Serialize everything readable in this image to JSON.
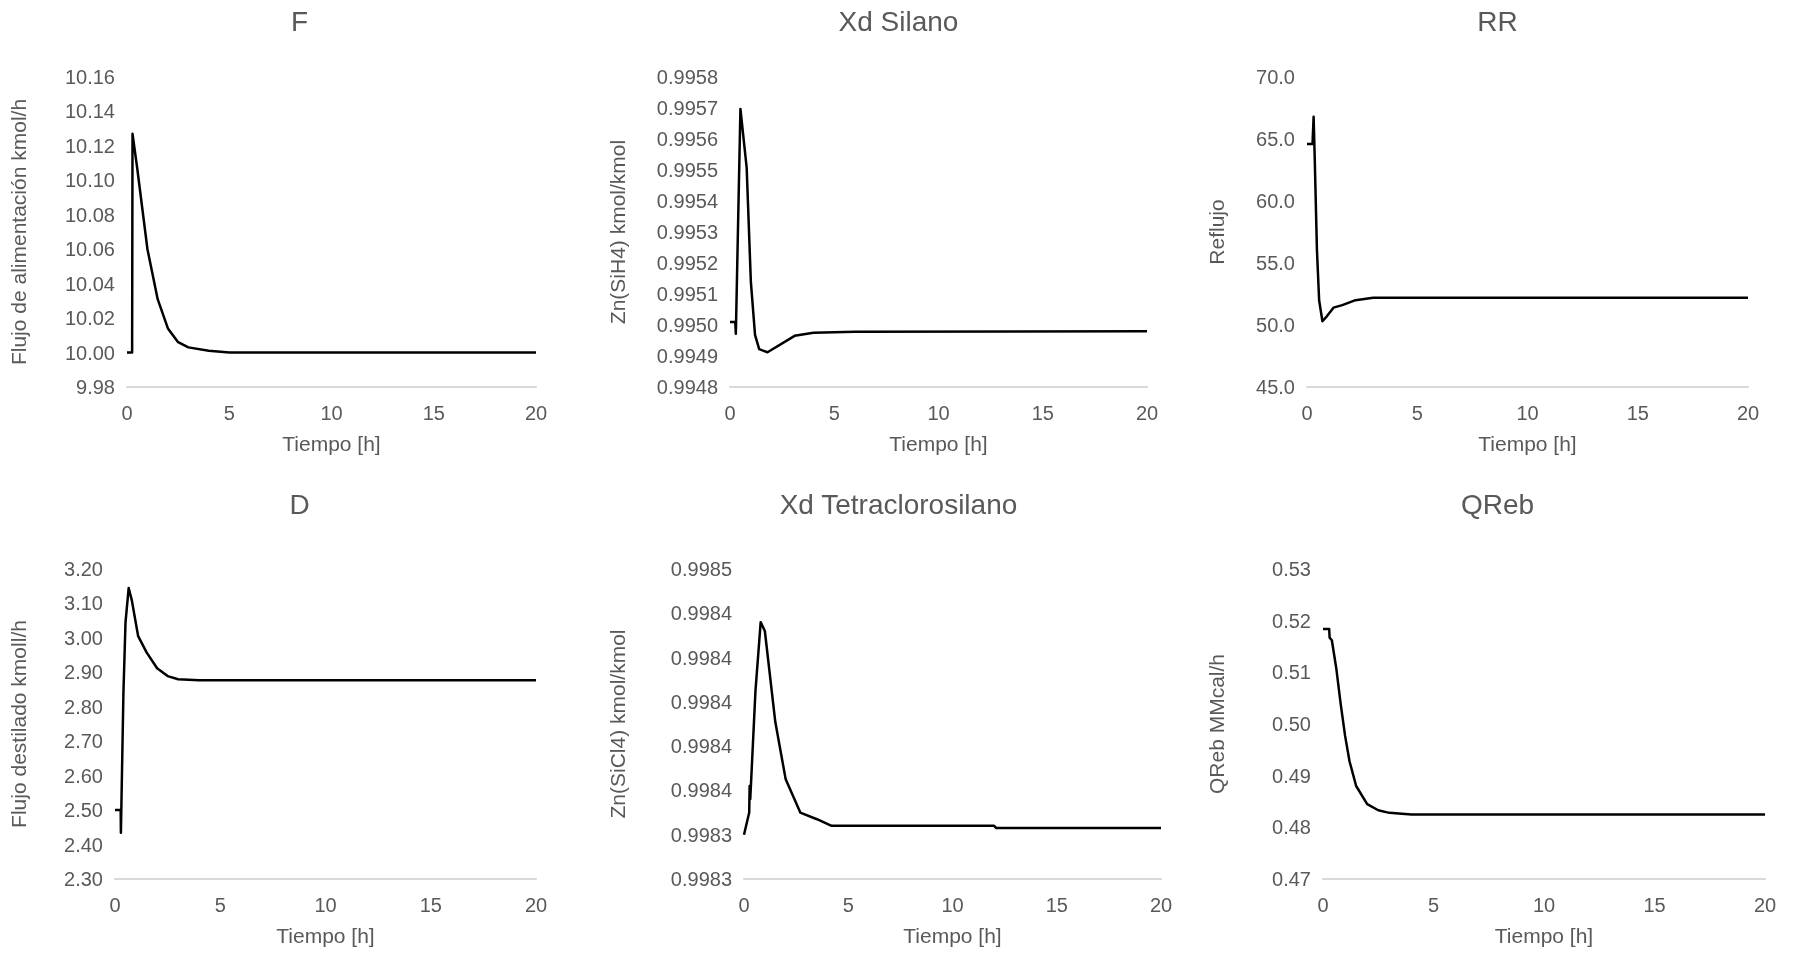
{
  "chart_data": [
    {
      "type": "line",
      "title": "F",
      "xlabel": "Tiempo [h]",
      "ylabel": "Flujo de alimentación kmol/h",
      "color": "#000000",
      "xlim": [
        0,
        20
      ],
      "xticks": [
        0,
        5,
        10,
        15,
        20
      ],
      "ylim": [
        9.98,
        10.16
      ],
      "yticks": [
        9.98,
        {
          "value": 10,
          "label": "10.00"
        },
        10.02,
        10.04,
        10.06,
        10.08,
        {
          "value": 10.1,
          "label": "10.10"
        },
        10.12,
        10.14,
        10.16
      ],
      "x": [
        0,
        0.25,
        0.27,
        0.5,
        1,
        1.5,
        2,
        2.5,
        3,
        4,
        5,
        20
      ],
      "values": [
        10,
        10,
        10.127,
        10.107,
        10.06,
        10.031,
        10.014,
        10.006,
        10.003,
        10.001,
        10,
        10
      ]
    },
    {
      "type": "line",
      "title": "Xd Silano",
      "xlabel": "Tiempo [h]",
      "ylabel": "Zn(SiH4) kmol/kmol",
      "color": "#000000",
      "xlim": [
        0,
        20
      ],
      "xticks": [
        0,
        5,
        10,
        15,
        20
      ],
      "ylim": [
        0.9948,
        0.9958
      ],
      "yticks": [
        0.9948,
        0.9949,
        {
          "value": 0.995,
          "label": "0.9950"
        },
        0.9951,
        0.9952,
        0.9953,
        0.9954,
        0.9955,
        0.9956,
        0.9957,
        0.9958
      ],
      "x": [
        0,
        0.25,
        0.28,
        0.5,
        0.8,
        1,
        1.2,
        1.4,
        1.8,
        3.1,
        4,
        6,
        20
      ],
      "values": [
        0.99501,
        0.99501,
        0.994972,
        0.995697,
        0.995507,
        0.99514,
        0.994968,
        0.994922,
        0.994912,
        0.994965,
        0.994975,
        0.994978,
        0.99498
      ]
    },
    {
      "type": "line",
      "title": "RR",
      "xlabel": "Tiempo [h]",
      "ylabel": "Reflujo",
      "color": "#000000",
      "xlim": [
        0,
        20
      ],
      "xticks": [
        0,
        5,
        10,
        15,
        20
      ],
      "ylim": [
        45,
        70
      ],
      "yticks": [
        {
          "value": 45,
          "label": "45.0"
        },
        {
          "value": 50,
          "label": "50.0"
        },
        {
          "value": 55,
          "label": "55.0"
        },
        {
          "value": 60,
          "label": "60.0"
        },
        {
          "value": 65,
          "label": "65.0"
        },
        {
          "value": 70,
          "label": "70.0"
        }
      ],
      "x": [
        0,
        0.25,
        0.3,
        0.35,
        0.45,
        0.55,
        0.7,
        0.9,
        1.2,
        1.6,
        2.2,
        3,
        5,
        20
      ],
      "values": [
        64.6,
        64.6,
        66.8,
        63.5,
        56.1,
        52,
        50.3,
        50.7,
        51.4,
        51.6,
        52,
        52.2,
        52.2,
        52.2
      ]
    },
    {
      "type": "line",
      "title": "D",
      "xlabel": "Tiempo [h]",
      "ylabel": "Flujo destilado kmoll/h",
      "color": "#000000",
      "xlim": [
        0,
        20
      ],
      "xticks": [
        0,
        5,
        10,
        15,
        20
      ],
      "ylim": [
        2.3,
        3.2
      ],
      "yticks": [
        {
          "value": 2.3,
          "label": "2.30"
        },
        {
          "value": 2.4,
          "label": "2.40"
        },
        {
          "value": 2.5,
          "label": "2.50"
        },
        {
          "value": 2.6,
          "label": "2.60"
        },
        {
          "value": 2.7,
          "label": "2.70"
        },
        {
          "value": 2.8,
          "label": "2.80"
        },
        {
          "value": 2.9,
          "label": "2.90"
        },
        {
          "value": 3,
          "label": "3.00"
        },
        {
          "value": 3.1,
          "label": "3.10"
        },
        {
          "value": 3.2,
          "label": "3.20"
        }
      ],
      "x": [
        0,
        0.27,
        0.28,
        0.4,
        0.5,
        0.65,
        0.8,
        1.1,
        1.5,
        2,
        2.5,
        3,
        4,
        20
      ],
      "values": [
        2.5,
        2.5,
        2.434,
        2.84,
        3.046,
        3.145,
        3.109,
        3.005,
        2.958,
        2.912,
        2.889,
        2.88,
        2.877,
        2.877
      ]
    },
    {
      "type": "line",
      "title": "Xd Tetraclorosilano",
      "xlabel": "Tiempo [h]",
      "ylabel": "Zn(SiCl4) kmol/kmol",
      "color": "#000000",
      "xlim": [
        0,
        20
      ],
      "xticks": [
        0,
        5,
        10,
        15,
        20
      ],
      "ylim": [
        0.99832,
        0.99846
      ],
      "yticks": [
        {
          "value": 0.99832,
          "label": "0.9983"
        },
        {
          "value": 0.99834,
          "label": "0.9983"
        },
        {
          "value": 0.99836,
          "label": "0.9984"
        },
        {
          "value": 0.99838,
          "label": "0.9984"
        },
        {
          "value": 0.9984,
          "label": "0.9984"
        },
        {
          "value": 0.99842,
          "label": "0.9984"
        },
        {
          "value": 0.99844,
          "label": "0.9984"
        },
        {
          "value": 0.99846,
          "label": "0.9985"
        }
      ],
      "x": [
        0,
        0.25,
        0.27,
        0.3,
        0.55,
        0.8,
        1,
        1.5,
        2,
        2.7,
        3.5,
        4.2,
        12,
        12.1,
        20
      ],
      "values": [
        0.99834,
        0.99835,
        0.998362,
        0.998356,
        0.998405,
        0.998436,
        0.998432,
        0.998391,
        0.998365,
        0.99835,
        0.998347,
        0.998344,
        0.998344,
        0.998343,
        0.998343
      ]
    },
    {
      "type": "line",
      "title": "QReb",
      "xlabel": "Tiempo [h]",
      "ylabel": "QReb MMcal/h",
      "color": "#000000",
      "xlim": [
        0,
        20
      ],
      "xticks": [
        0,
        5,
        10,
        15,
        20
      ],
      "ylim": [
        0.47,
        0.53
      ],
      "yticks": [
        0.47,
        0.48,
        0.49,
        {
          "value": 0.5,
          "label": "0.50"
        },
        0.51,
        0.52,
        0.53
      ],
      "x": [
        0,
        0.28,
        0.3,
        0.4,
        0.6,
        0.8,
        1,
        1.2,
        1.5,
        2,
        2.5,
        3,
        4,
        20
      ],
      "values": [
        0.5184,
        0.5184,
        0.5167,
        0.5162,
        0.5108,
        0.5039,
        0.4977,
        0.4928,
        0.488,
        0.4845,
        0.4833,
        0.4828,
        0.4825,
        0.4825
      ]
    }
  ]
}
